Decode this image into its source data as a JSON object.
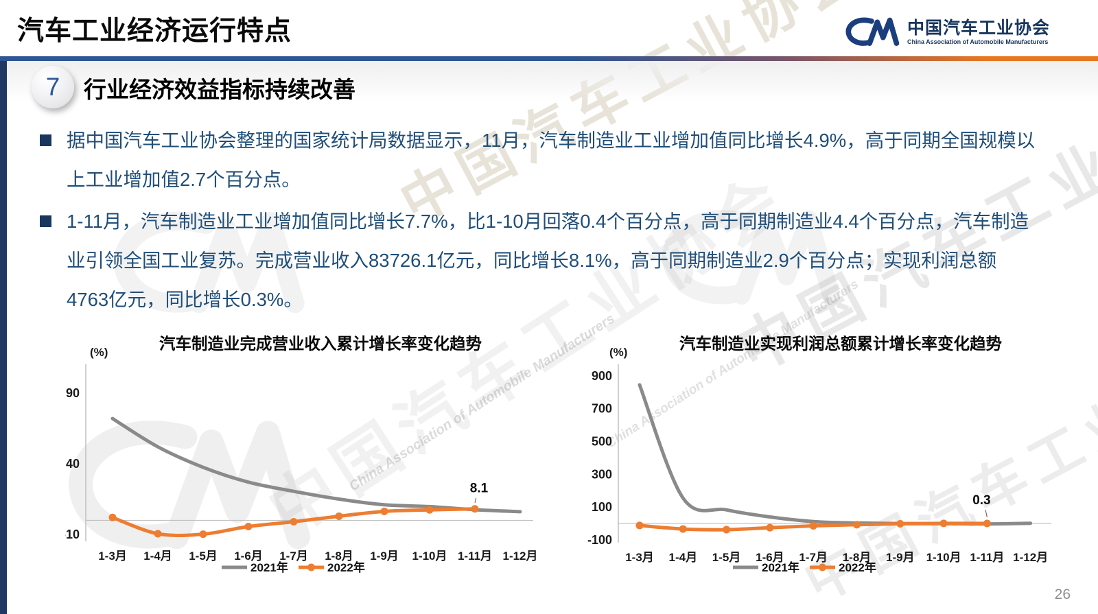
{
  "header": {
    "title": "汽车工业经济运行特点"
  },
  "logo": {
    "cn": "中国汽车工业协会",
    "en": "China Association of Automobile Manufacturers"
  },
  "section": {
    "number": "7",
    "heading": "行业经济效益指标持续改善"
  },
  "bullets": [
    {
      "text": "据中国汽车工业协会整理的国家统计局数据显示，11月，汽车制造业工业增加值同比增长4.9%，高于同期全国规模以上工业增加值2.7个百分点。"
    },
    {
      "text": "1-11月，汽车制造业工业增加值同比增长7.7%，比1-10月回落0.4个百分点，高于同期制造业4.4个百分点，汽车制造业引领全国工业复苏。完成营业收入83726.1亿元，同比增长8.1%，高于同期制造业2.9个百分点；实现利润总额4763亿元，同比增长0.3%。"
    }
  ],
  "footer": {
    "page_number": "26"
  },
  "watermark": {
    "cn": "中国汽车工业协会",
    "en": "China Association of Automobile Manufacturers"
  },
  "colors": {
    "accent_blue": "#2E5693",
    "accent_orange": "#E87722",
    "text_blue": "#1F4E79",
    "logo_blue": "#17365D",
    "series_gray": "#8A8A8A",
    "series_orange": "#ED7D31",
    "axis_gray": "#BFBFBF"
  },
  "chart_data": [
    {
      "type": "line",
      "title": "汽车制造业完成营业收入累计增长率变化趋势",
      "unit_label": "(%)",
      "categories": [
        "1-3月",
        "1-4月",
        "1-5月",
        "1-6月",
        "1-7月",
        "1-8月",
        "1-9月",
        "1-10月",
        "1-11月",
        "1-12月"
      ],
      "yticks": [
        90,
        40,
        -10
      ],
      "ylim": [
        -12.9,
        103.6
      ],
      "grid": false,
      "legend_position": "bottom",
      "series": [
        {
          "name": "2021年",
          "color": "#8A8A8A",
          "marker": false,
          "values": [
            72,
            52,
            37.5,
            27,
            20.5,
            15,
            11,
            9.7,
            7.5,
            6.1
          ]
        },
        {
          "name": "2022年",
          "color": "#ED7D31",
          "marker": true,
          "values": [
            2.0,
            -9.5,
            -9.8,
            -4.4,
            -1.0,
            2.9,
            6.3,
            7.4,
            8.1,
            null
          ]
        }
      ],
      "annotations": [
        {
          "label": "8.1",
          "series": "2022年",
          "category": "1-11月",
          "category_index": 8,
          "value": 8.1
        }
      ]
    },
    {
      "type": "line",
      "title": "汽车制造业实现利润总额累计增长率变化趋势",
      "unit_label": "(%)",
      "categories": [
        "1-3月",
        "1-4月",
        "1-5月",
        "1-6月",
        "1-7月",
        "1-8月",
        "1-9月",
        "1-10月",
        "1-11月",
        "1-12月"
      ],
      "yticks": [
        900,
        700,
        500,
        300,
        100,
        -100
      ],
      "ylim": [
        -100,
        912
      ],
      "grid": false,
      "legend_position": "bottom",
      "series": [
        {
          "name": "2021年",
          "color": "#8A8A8A",
          "marker": false,
          "values": [
            845,
            155,
            83,
            40,
            12,
            3,
            0,
            -1.5,
            -2.5,
            1.0
          ]
        },
        {
          "name": "2022年",
          "color": "#ED7D31",
          "marker": true,
          "values": [
            -11.9,
            -33.4,
            -37.5,
            -25.5,
            -14.4,
            -7.3,
            -1.9,
            0.8,
            0.3,
            null
          ]
        }
      ],
      "annotations": [
        {
          "label": "0.3",
          "series": "2022年",
          "category": "1-11月",
          "category_index": 8,
          "value": 0.3
        }
      ]
    }
  ]
}
